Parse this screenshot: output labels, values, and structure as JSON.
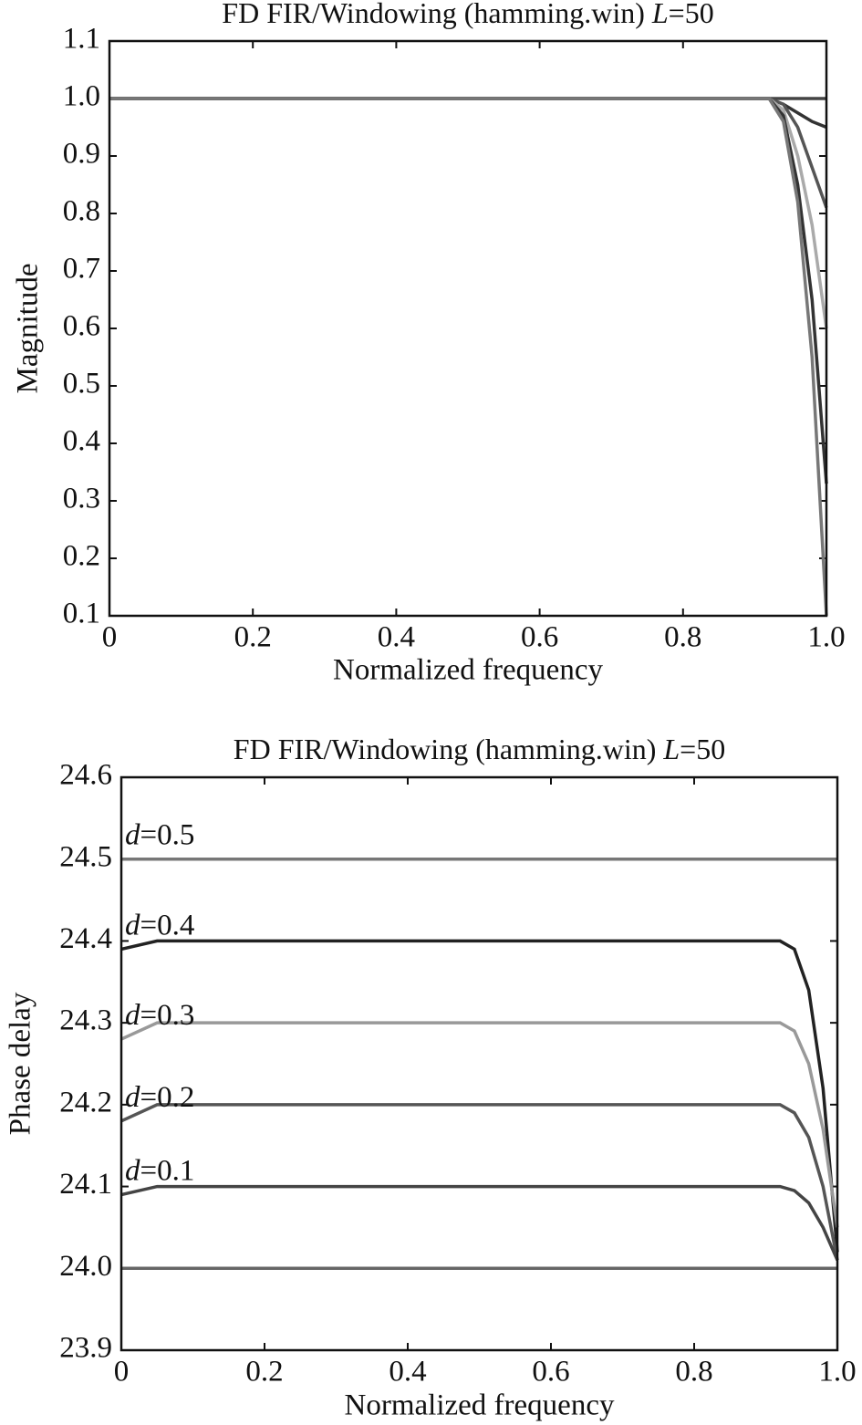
{
  "chart_data": [
    {
      "type": "line",
      "title": "FD FIR/Windowing (hamming.win) L=50",
      "x_label": "Normalized frequency",
      "y_label": "Magnitude",
      "x": [
        0,
        0.05,
        0.1,
        0.2,
        0.3,
        0.4,
        0.5,
        0.6,
        0.7,
        0.8,
        0.9,
        0.92,
        0.94,
        0.96,
        0.98,
        1
      ],
      "series": [
        {
          "color": "#444444",
          "values": [
            1,
            1,
            1,
            1,
            1,
            1,
            1,
            1,
            1,
            1,
            1,
            1,
            1,
            1,
            1,
            1
          ]
        },
        {
          "color": "#333333",
          "values": [
            1,
            1,
            1,
            1,
            1,
            1,
            1,
            1,
            1,
            1,
            1,
            1,
            0.99,
            0.975,
            0.96,
            0.95
          ]
        },
        {
          "color": "#555555",
          "values": [
            1,
            1,
            1,
            1,
            1,
            1,
            1,
            1,
            1,
            1,
            1,
            1,
            0.99,
            0.95,
            0.88,
            0.81
          ]
        },
        {
          "color": "#aaaaaa",
          "values": [
            1,
            1,
            1,
            1,
            1,
            1,
            1,
            1,
            1,
            1,
            1,
            1,
            0.98,
            0.9,
            0.78,
            0.6
          ]
        },
        {
          "color": "#333333",
          "values": [
            1,
            1,
            1,
            1,
            1,
            1,
            1,
            1,
            1,
            1,
            1,
            1,
            0.97,
            0.85,
            0.65,
            0.33
          ]
        },
        {
          "color": "#777777",
          "values": [
            1,
            1,
            1,
            1,
            1,
            1,
            1,
            1,
            1,
            1,
            1,
            1,
            0.96,
            0.82,
            0.55,
            0.1
          ]
        }
      ],
      "xlim": [
        0,
        1
      ],
      "ylim": [
        0.1,
        1.1
      ],
      "xticks": [
        0,
        0.2,
        0.4,
        0.6,
        0.8,
        {
          "value": 1,
          "label": "1.0"
        }
      ],
      "yticks": [
        0.1,
        0.2,
        0.3,
        0.4,
        0.5,
        0.6,
        0.7,
        0.8,
        0.9,
        {
          "value": 1,
          "label": "1.0"
        },
        1.1
      ],
      "grid": false
    },
    {
      "type": "line",
      "title": "FD FIR/Windowing (hamming.win) L=50",
      "x_label": "Normalized frequency",
      "y_label": "Phase delay",
      "x": [
        0,
        0.05,
        0.1,
        0.2,
        0.3,
        0.4,
        0.5,
        0.6,
        0.7,
        0.8,
        0.9,
        0.92,
        0.94,
        0.96,
        0.98,
        1
      ],
      "series": [
        {
          "name": "d=0.5",
          "color": "#777777",
          "values": [
            24.5,
            24.5,
            24.5,
            24.5,
            24.5,
            24.5,
            24.5,
            24.5,
            24.5,
            24.5,
            24.5,
            24.5,
            24.5,
            24.5,
            24.5,
            24.5
          ]
        },
        {
          "name": "d=0.4",
          "color": "#222222",
          "values": [
            24.39,
            24.4,
            24.4,
            24.4,
            24.4,
            24.4,
            24.4,
            24.4,
            24.4,
            24.4,
            24.4,
            24.4,
            24.39,
            24.34,
            24.22,
            24.02
          ]
        },
        {
          "name": "d=0.3",
          "color": "#999999",
          "values": [
            24.28,
            24.3,
            24.3,
            24.3,
            24.3,
            24.3,
            24.3,
            24.3,
            24.3,
            24.3,
            24.3,
            24.3,
            24.29,
            24.25,
            24.17,
            24.05
          ]
        },
        {
          "name": "d=0.2",
          "color": "#555555",
          "values": [
            24.18,
            24.2,
            24.2,
            24.2,
            24.2,
            24.2,
            24.2,
            24.2,
            24.2,
            24.2,
            24.2,
            24.2,
            24.19,
            24.16,
            24.1,
            24.01
          ]
        },
        {
          "name": "d=0.1",
          "color": "#444444",
          "values": [
            24.09,
            24.1,
            24.1,
            24.1,
            24.1,
            24.1,
            24.1,
            24.1,
            24.1,
            24.1,
            24.1,
            24.1,
            24.095,
            24.08,
            24.05,
            24.01
          ]
        },
        {
          "color": "#666666",
          "values": [
            24,
            24,
            24,
            24,
            24,
            24,
            24,
            24,
            24,
            24,
            24,
            24,
            24,
            24,
            24,
            24
          ]
        }
      ],
      "xlim": [
        0,
        1
      ],
      "ylim": [
        23.9,
        24.6
      ],
      "xticks": [
        0,
        0.2,
        0.4,
        0.6,
        0.8,
        {
          "value": 1,
          "label": "1.0"
        }
      ],
      "yticks": [
        23.9,
        {
          "value": 24,
          "label": "24.0"
        },
        24.1,
        24.2,
        24.3,
        24.4,
        24.5,
        24.6
      ],
      "grid": false
    }
  ]
}
